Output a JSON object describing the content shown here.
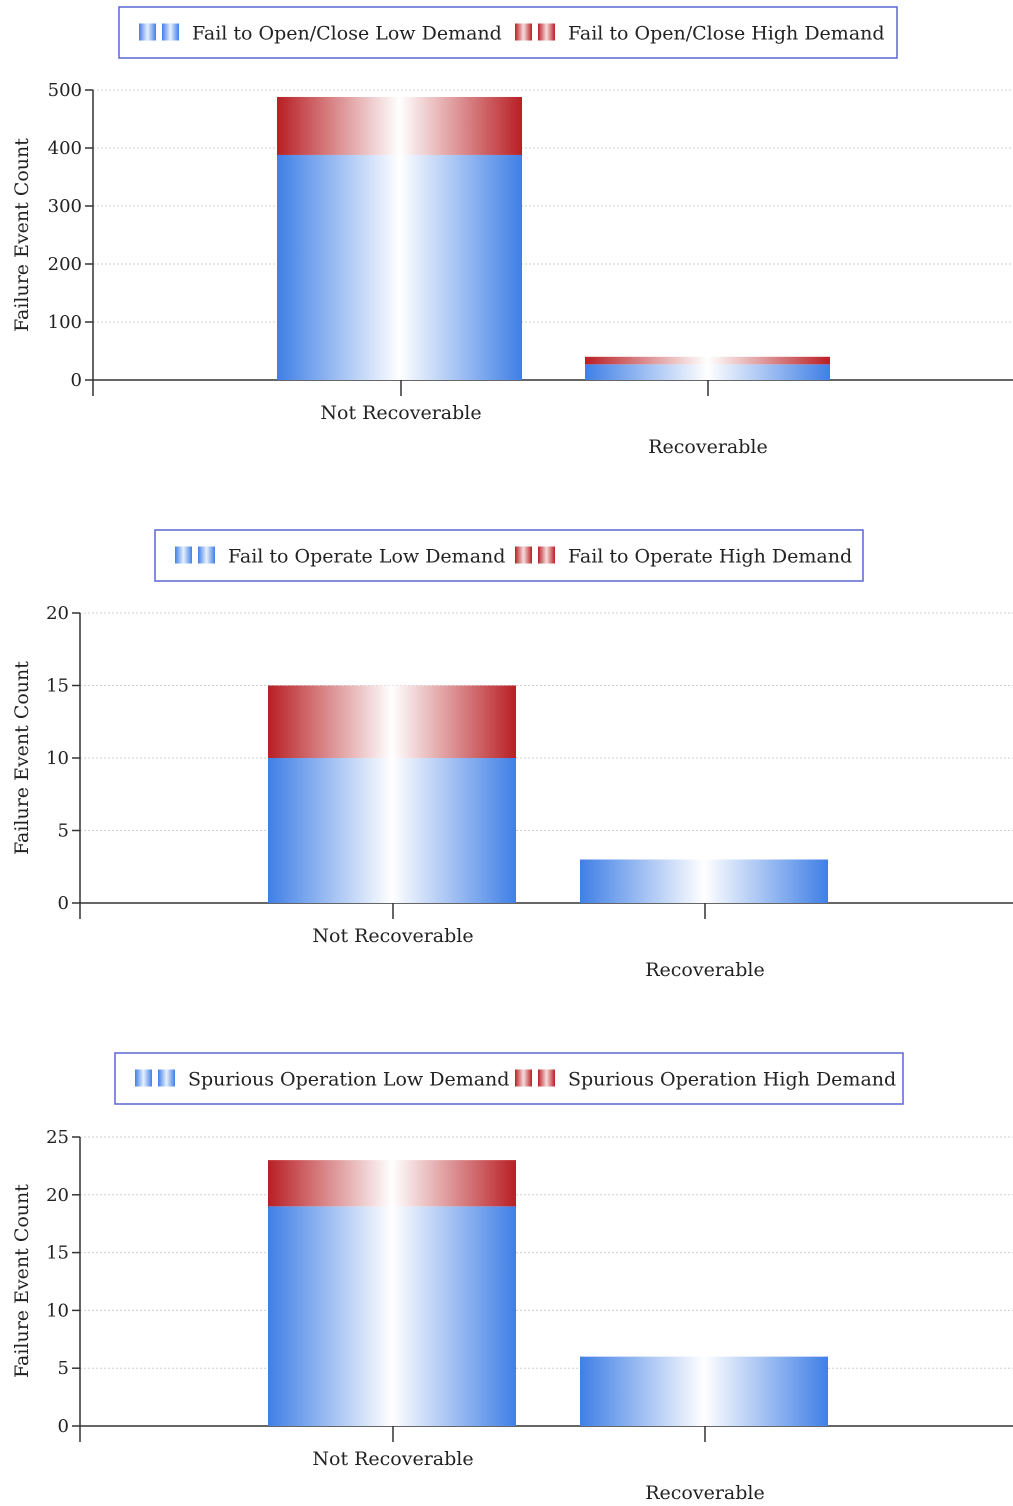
{
  "colors": {
    "low_demand": "#3f7fe6",
    "high_demand": "#b81f24",
    "legend_border": "#5b66d6",
    "axis": "#333333",
    "grid": "#cfcfcf"
  },
  "chart_data": [
    {
      "type": "bar",
      "stacked": true,
      "categories": [
        "Not Recoverable",
        "Recoverable"
      ],
      "series": [
        {
          "name": "Fail to Open/Close Low Demand",
          "values": [
            388,
            27
          ]
        },
        {
          "name": "Fail to Open/Close High Demand",
          "values": [
            100,
            13
          ]
        }
      ],
      "ylabel": "Failure Event Count",
      "ylim": [
        0,
        500
      ],
      "yticks": [
        0,
        100,
        200,
        300,
        400,
        500
      ],
      "grid": true,
      "legend": "top"
    },
    {
      "type": "bar",
      "stacked": true,
      "categories": [
        "Not Recoverable",
        "Recoverable"
      ],
      "series": [
        {
          "name": "Fail to Operate Low Demand",
          "values": [
            10,
            3
          ]
        },
        {
          "name": "Fail to Operate High Demand",
          "values": [
            5,
            0
          ]
        }
      ],
      "ylabel": "Failure Event Count",
      "ylim": [
        0,
        20
      ],
      "yticks": [
        0,
        5,
        10,
        15,
        20
      ],
      "grid": true,
      "legend": "top"
    },
    {
      "type": "bar",
      "stacked": true,
      "categories": [
        "Not Recoverable",
        "Recoverable"
      ],
      "series": [
        {
          "name": "Spurious Operation Low Demand",
          "values": [
            19,
            6
          ]
        },
        {
          "name": "Spurious Operation High Demand",
          "values": [
            4,
            0
          ]
        }
      ],
      "ylabel": "Failure Event Count",
      "ylim": [
        0,
        25
      ],
      "yticks": [
        0,
        5,
        10,
        15,
        20,
        25
      ],
      "grid": true,
      "legend": "top"
    }
  ]
}
